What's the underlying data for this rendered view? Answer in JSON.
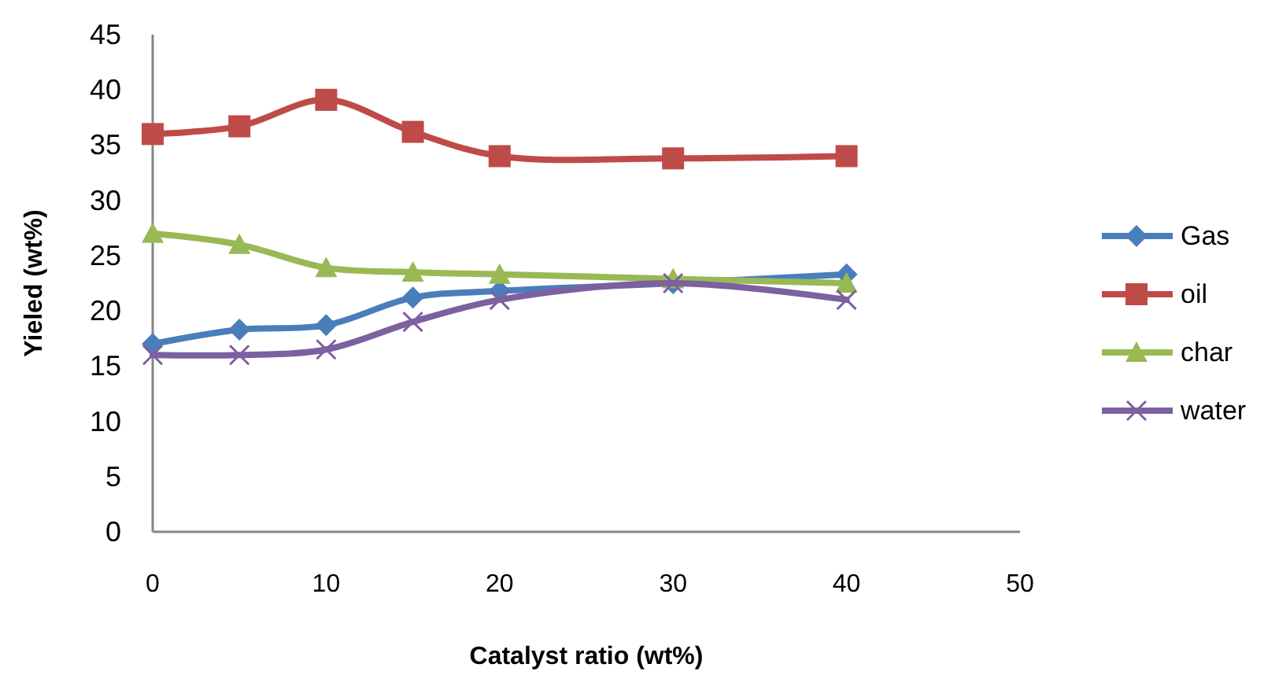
{
  "chart_data": {
    "type": "line",
    "xlabel": "Catalyst ratio (wt%)",
    "ylabel": "Yieled (wt%)",
    "x": [
      0,
      5,
      10,
      15,
      20,
      30,
      40
    ],
    "xlim": [
      0,
      50
    ],
    "xticks": [
      0,
      10,
      20,
      30,
      40,
      50
    ],
    "ylim": [
      0,
      45
    ],
    "yticks": [
      0,
      5,
      10,
      15,
      20,
      25,
      30,
      35,
      40,
      45
    ],
    "grid": false,
    "legend": "right",
    "line_style": "solid",
    "series": [
      {
        "name": "Gas",
        "color": "#4a7ebb",
        "marker": "diamond",
        "values": [
          17,
          18.3,
          18.7,
          21.2,
          21.8,
          22.5,
          23.3
        ]
      },
      {
        "name": "oil",
        "color": "#be4b48",
        "marker": "square",
        "values": [
          36,
          36.7,
          39.1,
          36.2,
          34,
          33.8,
          34
        ]
      },
      {
        "name": "char",
        "color": "#98b954",
        "marker": "triangle",
        "values": [
          27,
          26,
          23.9,
          23.5,
          23.3,
          22.9,
          22.5
        ]
      },
      {
        "name": "water",
        "color": "#7d60a0",
        "marker": "cross",
        "values": [
          16,
          16,
          16.5,
          19,
          21,
          22.5,
          21
        ]
      }
    ]
  }
}
